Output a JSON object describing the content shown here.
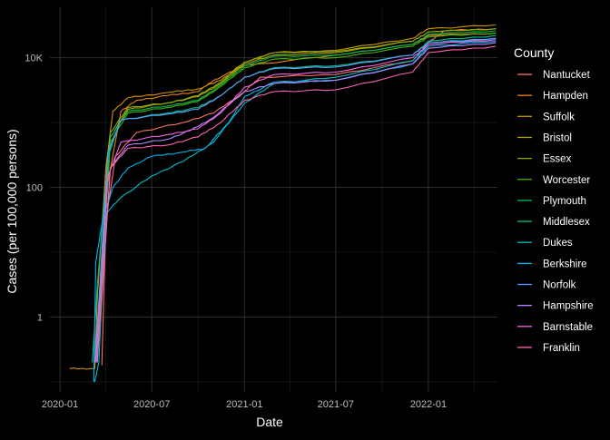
{
  "chart_data": {
    "type": "line",
    "title": "",
    "xlabel": "Date",
    "ylabel": "Cases (per 100,000 persons)",
    "y_scale": "log10",
    "ylim": [
      0.07,
      60000
    ],
    "xlim": [
      "2019-12-12",
      "2022-05-18"
    ],
    "x_ticks": [
      "2020-01-01",
      "2020-07-01",
      "2021-01-01",
      "2021-07-01",
      "2022-01-01"
    ],
    "x_tick_labels": [
      "2020-01",
      "2020-07",
      "2021-01",
      "2021-07",
      "2022-01"
    ],
    "y_ticks": [
      1,
      100,
      10000
    ],
    "y_tick_labels": [
      "1",
      "100",
      "10K"
    ],
    "grid": true,
    "legend_title": "County",
    "legend_position": "right",
    "series": [
      {
        "name": "Nantucket",
        "color": "#F8766D",
        "points": [
          [
            "2020-03-24",
            0.18
          ],
          [
            "2020-04-01",
            30
          ],
          [
            "2020-04-20",
            300
          ],
          [
            "2020-06-01",
            700
          ],
          [
            "2020-09-01",
            1000
          ],
          [
            "2020-11-01",
            1400
          ],
          [
            "2021-01-01",
            3000
          ],
          [
            "2021-02-01",
            5000
          ],
          [
            "2021-07-01",
            5500
          ],
          [
            "2021-12-01",
            9000
          ],
          [
            "2022-01-01",
            17000
          ],
          [
            "2022-02-01",
            26000
          ],
          [
            "2022-05-15",
            28000
          ]
        ]
      },
      {
        "name": "Hampden",
        "color": "#E7851E",
        "points": [
          [
            "2020-03-12",
            0.2
          ],
          [
            "2020-03-20",
            2
          ],
          [
            "2020-04-01",
            80
          ],
          [
            "2020-05-01",
            1500
          ],
          [
            "2020-06-01",
            2200
          ],
          [
            "2020-08-01",
            2600
          ],
          [
            "2020-10-01",
            3000
          ],
          [
            "2020-11-01",
            4500
          ],
          [
            "2021-01-01",
            7500
          ],
          [
            "2021-07-01",
            11000
          ],
          [
            "2021-12-01",
            16000
          ],
          [
            "2022-01-01",
            22000
          ],
          [
            "2022-05-15",
            24000
          ]
        ]
      },
      {
        "name": "Suffolk",
        "color": "#D09400",
        "points": [
          [
            "2020-01-20",
            0.16
          ],
          [
            "2020-03-10",
            0.16
          ],
          [
            "2020-03-15",
            2
          ],
          [
            "2020-04-01",
            200
          ],
          [
            "2020-04-15",
            1500
          ],
          [
            "2020-05-15",
            2400
          ],
          [
            "2020-08-01",
            2900
          ],
          [
            "2020-10-01",
            3300
          ],
          [
            "2020-11-15",
            4500
          ],
          [
            "2021-01-01",
            8500
          ],
          [
            "2021-03-01",
            12000
          ],
          [
            "2021-07-01",
            13000
          ],
          [
            "2021-12-01",
            20000
          ],
          [
            "2022-01-01",
            28000
          ],
          [
            "2022-05-15",
            32000
          ]
        ]
      },
      {
        "name": "Bristol",
        "color": "#B2A100",
        "points": [
          [
            "2020-03-15",
            0.2
          ],
          [
            "2020-03-25",
            5
          ],
          [
            "2020-04-10",
            600
          ],
          [
            "2020-05-15",
            1600
          ],
          [
            "2020-08-01",
            2000
          ],
          [
            "2020-10-01",
            2500
          ],
          [
            "2020-11-15",
            4000
          ],
          [
            "2021-01-01",
            8000
          ],
          [
            "2021-03-01",
            11000
          ],
          [
            "2021-07-01",
            12000
          ],
          [
            "2021-12-01",
            18000
          ],
          [
            "2022-01-01",
            25000
          ],
          [
            "2022-05-15",
            28000
          ]
        ]
      },
      {
        "name": "Essex",
        "color": "#89AC00",
        "points": [
          [
            "2020-03-12",
            0.2
          ],
          [
            "2020-03-22",
            5
          ],
          [
            "2020-04-10",
            700
          ],
          [
            "2020-05-15",
            1700
          ],
          [
            "2020-08-01",
            2000
          ],
          [
            "2020-10-01",
            2600
          ],
          [
            "2020-11-15",
            4200
          ],
          [
            "2021-01-01",
            8500
          ],
          [
            "2021-03-01",
            12000
          ],
          [
            "2021-07-01",
            12500
          ],
          [
            "2021-12-01",
            18000
          ],
          [
            "2022-01-01",
            25000
          ],
          [
            "2022-05-15",
            28000
          ]
        ]
      },
      {
        "name": "Worcester",
        "color": "#45B500",
        "points": [
          [
            "2020-03-14",
            0.2
          ],
          [
            "2020-03-24",
            4
          ],
          [
            "2020-04-10",
            500
          ],
          [
            "2020-05-15",
            1400
          ],
          [
            "2020-08-01",
            1700
          ],
          [
            "2020-10-01",
            2100
          ],
          [
            "2020-11-15",
            3600
          ],
          [
            "2021-01-01",
            7000
          ],
          [
            "2021-03-01",
            9500
          ],
          [
            "2021-07-01",
            10000
          ],
          [
            "2021-12-01",
            15000
          ],
          [
            "2022-01-01",
            21000
          ],
          [
            "2022-05-15",
            24000
          ]
        ]
      },
      {
        "name": "Plymouth",
        "color": "#00BC51",
        "points": [
          [
            "2020-03-13",
            0.2
          ],
          [
            "2020-03-24",
            4
          ],
          [
            "2020-04-10",
            600
          ],
          [
            "2020-05-15",
            1500
          ],
          [
            "2020-08-01",
            1800
          ],
          [
            "2020-10-01",
            2200
          ],
          [
            "2020-11-15",
            3800
          ],
          [
            "2021-01-01",
            7500
          ],
          [
            "2021-03-01",
            10500
          ],
          [
            "2021-07-01",
            11000
          ],
          [
            "2021-12-01",
            16000
          ],
          [
            "2022-01-01",
            23000
          ],
          [
            "2022-05-15",
            26000
          ]
        ]
      },
      {
        "name": "Middlesex",
        "color": "#00C08B",
        "points": [
          [
            "2020-03-05",
            0.2
          ],
          [
            "2020-03-15",
            3
          ],
          [
            "2020-04-05",
            300
          ],
          [
            "2020-05-01",
            1100
          ],
          [
            "2020-08-01",
            1400
          ],
          [
            "2020-10-01",
            1700
          ],
          [
            "2020-11-15",
            2600
          ],
          [
            "2021-01-01",
            5000
          ],
          [
            "2021-03-01",
            7000
          ],
          [
            "2021-07-01",
            7500
          ],
          [
            "2021-12-01",
            11000
          ],
          [
            "2022-01-01",
            18000
          ],
          [
            "2022-05-15",
            22000
          ]
        ]
      },
      {
        "name": "Dukes",
        "color": "#00BFC4",
        "points": [
          [
            "2020-03-10",
            0.1
          ],
          [
            "2020-03-18",
            0.2
          ],
          [
            "2020-04-01",
            40
          ],
          [
            "2020-05-01",
            70
          ],
          [
            "2020-07-01",
            150
          ],
          [
            "2020-09-01",
            250
          ],
          [
            "2020-11-01",
            500
          ],
          [
            "2021-01-01",
            2000
          ],
          [
            "2021-03-01",
            4000
          ],
          [
            "2021-07-01",
            5000
          ],
          [
            "2021-12-01",
            9000
          ],
          [
            "2022-01-01",
            16000
          ],
          [
            "2022-05-15",
            20000
          ]
        ]
      },
      {
        "name": "Berkshire",
        "color": "#00B4EF",
        "points": [
          [
            "2020-03-08",
            0.1
          ],
          [
            "2020-03-12",
            7
          ],
          [
            "2020-03-25",
            30
          ],
          [
            "2020-04-15",
            100
          ],
          [
            "2020-05-15",
            200
          ],
          [
            "2020-07-01",
            300
          ],
          [
            "2020-09-01",
            350
          ],
          [
            "2020-10-15",
            400
          ],
          [
            "2020-12-01",
            1000
          ],
          [
            "2021-01-01",
            2500
          ],
          [
            "2021-03-01",
            4200
          ],
          [
            "2021-07-01",
            4500
          ],
          [
            "2021-12-01",
            8000
          ],
          [
            "2022-01-01",
            15000
          ],
          [
            "2022-05-15",
            18000
          ]
        ]
      },
      {
        "name": "Norfolk",
        "color": "#619CFF",
        "points": [
          [
            "2020-03-10",
            0.2
          ],
          [
            "2020-03-20",
            3
          ],
          [
            "2020-04-05",
            350
          ],
          [
            "2020-05-01",
            1100
          ],
          [
            "2020-08-01",
            1350
          ],
          [
            "2020-10-01",
            1600
          ],
          [
            "2020-11-15",
            2600
          ],
          [
            "2021-01-01",
            5000
          ],
          [
            "2021-03-01",
            6800
          ],
          [
            "2021-07-01",
            7200
          ],
          [
            "2021-12-01",
            11000
          ],
          [
            "2022-01-01",
            17000
          ],
          [
            "2022-05-15",
            20000
          ]
        ]
      },
      {
        "name": "Hampshire",
        "color": "#B983FF",
        "points": [
          [
            "2020-03-15",
            0.2
          ],
          [
            "2020-03-25",
            3
          ],
          [
            "2020-04-10",
            200
          ],
          [
            "2020-05-15",
            450
          ],
          [
            "2020-08-01",
            550
          ],
          [
            "2020-09-15",
            750
          ],
          [
            "2020-11-01",
            1200
          ],
          [
            "2021-01-01",
            3000
          ],
          [
            "2021-03-01",
            4000
          ],
          [
            "2021-07-01",
            4500
          ],
          [
            "2021-12-01",
            8000
          ],
          [
            "2022-01-01",
            14000
          ],
          [
            "2022-05-15",
            17000
          ]
        ]
      },
      {
        "name": "Barnstable",
        "color": "#F564E3",
        "points": [
          [
            "2020-03-12",
            0.2
          ],
          [
            "2020-03-22",
            3
          ],
          [
            "2020-04-05",
            150
          ],
          [
            "2020-05-01",
            500
          ],
          [
            "2020-08-01",
            650
          ],
          [
            "2020-10-01",
            800
          ],
          [
            "2020-11-15",
            1400
          ],
          [
            "2021-01-01",
            3500
          ],
          [
            "2021-03-01",
            5500
          ],
          [
            "2021-07-01",
            6000
          ],
          [
            "2021-12-01",
            10000
          ],
          [
            "2022-01-01",
            16000
          ],
          [
            "2022-05-15",
            19000
          ]
        ]
      },
      {
        "name": "Franklin",
        "color": "#FF64B0",
        "points": [
          [
            "2020-03-14",
            0.2
          ],
          [
            "2020-03-24",
            2
          ],
          [
            "2020-04-10",
            200
          ],
          [
            "2020-05-15",
            400
          ],
          [
            "2020-08-01",
            450
          ],
          [
            "2020-10-01",
            600
          ],
          [
            "2020-11-15",
            1000
          ],
          [
            "2021-01-01",
            2200
          ],
          [
            "2021-03-01",
            3000
          ],
          [
            "2021-07-01",
            3200
          ],
          [
            "2021-12-01",
            6000
          ],
          [
            "2022-01-01",
            12000
          ],
          [
            "2022-05-15",
            15000
          ]
        ]
      }
    ]
  }
}
